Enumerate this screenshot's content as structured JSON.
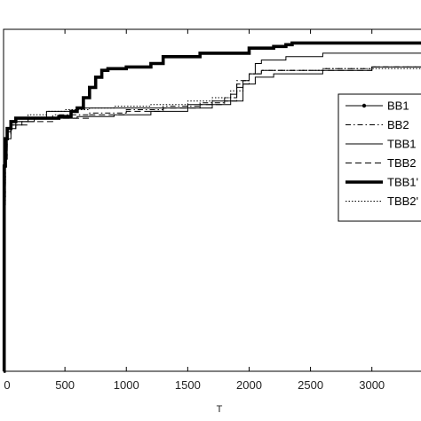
{
  "chart_data": {
    "type": "line",
    "xlabel": "T",
    "ylabel": "",
    "xlim": [
      0,
      3400
    ],
    "ylim": [
      0,
      1
    ],
    "grid": false,
    "x_ticks": [
      0,
      500,
      1000,
      1500,
      2000,
      2500,
      3000
    ],
    "x_tick_labels": [
      "0",
      "500",
      "1000",
      "1500",
      "2000",
      "2500",
      "3000"
    ],
    "legend_position": "right",
    "series": [
      {
        "name": "BB1",
        "style": "solid-dot",
        "color": "#000000",
        "x": [
          0,
          5,
          15,
          30,
          60,
          100,
          150,
          250,
          400,
          600,
          900,
          1200,
          1500,
          1700,
          1850,
          1950,
          2050,
          2200,
          2400,
          2600,
          2800,
          3000,
          3200,
          3400
        ],
        "y": [
          0.0,
          0.5,
          0.62,
          0.68,
          0.71,
          0.72,
          0.73,
          0.74,
          0.74,
          0.745,
          0.75,
          0.76,
          0.77,
          0.78,
          0.79,
          0.84,
          0.86,
          0.87,
          0.87,
          0.88,
          0.88,
          0.89,
          0.89,
          0.89
        ]
      },
      {
        "name": "BB2",
        "style": "dashdot",
        "color": "#000000",
        "x": [
          0,
          5,
          15,
          30,
          60,
          100,
          200,
          400,
          700,
          1000,
          1300,
          1600,
          1800,
          1900,
          2000,
          2100,
          2300,
          2600,
          3000,
          3400
        ],
        "y": [
          0.0,
          0.48,
          0.62,
          0.7,
          0.72,
          0.73,
          0.74,
          0.75,
          0.755,
          0.765,
          0.775,
          0.785,
          0.8,
          0.85,
          0.87,
          0.88,
          0.88,
          0.885,
          0.89,
          0.89
        ]
      },
      {
        "name": "TBB1",
        "style": "solid-thin",
        "color": "#000000",
        "x": [
          0,
          5,
          15,
          30,
          60,
          100,
          200,
          350,
          600,
          800,
          1000,
          1200,
          1500,
          1700,
          1850,
          1900,
          1950,
          2000,
          2050,
          2100,
          2300,
          2600,
          2900,
          3200,
          3400
        ],
        "y": [
          0.0,
          0.55,
          0.65,
          0.7,
          0.72,
          0.73,
          0.74,
          0.76,
          0.77,
          0.77,
          0.77,
          0.77,
          0.78,
          0.79,
          0.81,
          0.83,
          0.85,
          0.87,
          0.9,
          0.91,
          0.92,
          0.93,
          0.93,
          0.93,
          0.93
        ]
      },
      {
        "name": "TBB2",
        "style": "dashed",
        "color": "#000000",
        "x": [
          0,
          5,
          15,
          30,
          60,
          100,
          200,
          400,
          700,
          1000,
          1300,
          1600,
          1800,
          1900,
          2000,
          2100,
          2300,
          2600,
          3000,
          3400
        ],
        "y": [
          0.0,
          0.5,
          0.63,
          0.69,
          0.71,
          0.72,
          0.73,
          0.74,
          0.75,
          0.76,
          0.77,
          0.78,
          0.79,
          0.84,
          0.87,
          0.88,
          0.88,
          0.88,
          0.89,
          0.89
        ]
      },
      {
        "name": "TBB1'",
        "style": "solid-thick",
        "color": "#000000",
        "x": [
          0,
          5,
          15,
          30,
          60,
          100,
          250,
          450,
          550,
          600,
          650,
          700,
          750,
          800,
          850,
          1000,
          1200,
          1300,
          1600,
          2000,
          2200,
          2300,
          2350,
          2600,
          3000,
          3400
        ],
        "y": [
          0.0,
          0.6,
          0.68,
          0.71,
          0.73,
          0.74,
          0.74,
          0.745,
          0.76,
          0.77,
          0.8,
          0.83,
          0.86,
          0.88,
          0.885,
          0.89,
          0.9,
          0.92,
          0.93,
          0.945,
          0.95,
          0.955,
          0.96,
          0.96,
          0.96,
          0.96
        ]
      },
      {
        "name": "TBB2'",
        "style": "dotted",
        "color": "#000000",
        "x": [
          0,
          5,
          15,
          30,
          60,
          100,
          200,
          350,
          500,
          700,
          900,
          1200,
          1500,
          1700,
          1850,
          1950,
          2000,
          2100,
          2300,
          2600,
          3000,
          3400
        ],
        "y": [
          0.0,
          0.55,
          0.66,
          0.71,
          0.73,
          0.74,
          0.75,
          0.76,
          0.765,
          0.77,
          0.775,
          0.78,
          0.79,
          0.8,
          0.82,
          0.85,
          0.87,
          0.88,
          0.88,
          0.885,
          0.885,
          0.885
        ]
      }
    ]
  }
}
